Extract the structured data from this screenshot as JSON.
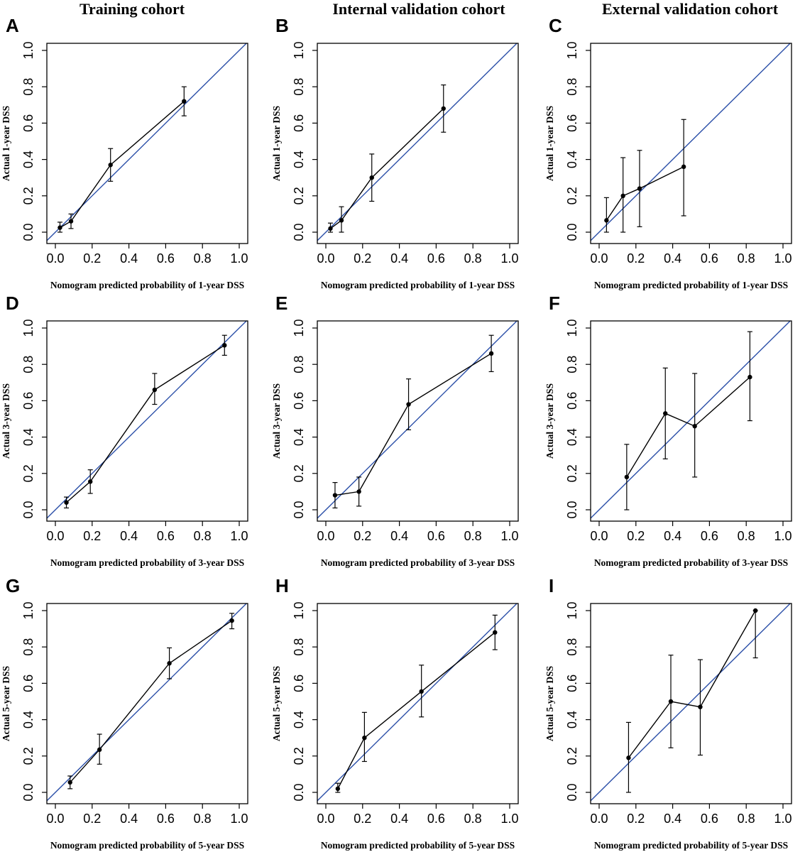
{
  "column_titles": [
    "Training cohort",
    "Internal validation cohort",
    "External validation cohort"
  ],
  "chart_data": [
    {
      "panel": "A",
      "type": "line",
      "cohort": "Training cohort",
      "xlabel": "Nomogram predicted probability of 1-year DSS",
      "ylabel": "Actual 1-year DSS",
      "xlim": [
        0,
        1
      ],
      "ylim": [
        0,
        1
      ],
      "ticks": [
        "0.0",
        "0.2",
        "0.4",
        "0.6",
        "0.8",
        "1.0"
      ],
      "reference_line": "ideal (y = x)",
      "points": [
        {
          "x": 0.025,
          "y": 0.025,
          "lo": 0.0,
          "hi": 0.055
        },
        {
          "x": 0.085,
          "y": 0.06,
          "lo": 0.02,
          "hi": 0.1
        },
        {
          "x": 0.3,
          "y": 0.37,
          "lo": 0.28,
          "hi": 0.46
        },
        {
          "x": 0.7,
          "y": 0.72,
          "lo": 0.64,
          "hi": 0.8
        }
      ]
    },
    {
      "panel": "B",
      "type": "line",
      "cohort": "Internal validation cohort",
      "xlabel": "Nomogram predicted probability of 1-year DSS",
      "ylabel": "Actual 1-year DSS",
      "xlim": [
        0,
        1
      ],
      "ylim": [
        0,
        1
      ],
      "ticks": [
        "0.0",
        "0.2",
        "0.4",
        "0.6",
        "0.8",
        "1.0"
      ],
      "reference_line": "ideal (y = x)",
      "points": [
        {
          "x": 0.025,
          "y": 0.02,
          "lo": 0.0,
          "hi": 0.05
        },
        {
          "x": 0.085,
          "y": 0.065,
          "lo": 0.0,
          "hi": 0.14
        },
        {
          "x": 0.25,
          "y": 0.3,
          "lo": 0.17,
          "hi": 0.43
        },
        {
          "x": 0.64,
          "y": 0.68,
          "lo": 0.55,
          "hi": 0.81
        }
      ]
    },
    {
      "panel": "C",
      "type": "line",
      "cohort": "External validation cohort",
      "xlabel": "Nomogram predicted probability of 1-year DSS",
      "ylabel": "Actual 1-year DSS",
      "xlim": [
        0,
        1
      ],
      "ylim": [
        0,
        1
      ],
      "ticks": [
        "0.0",
        "0.2",
        "0.4",
        "0.6",
        "0.8",
        "1.0"
      ],
      "reference_line": "ideal (y = x)",
      "points": [
        {
          "x": 0.04,
          "y": 0.065,
          "lo": 0.0,
          "hi": 0.19
        },
        {
          "x": 0.13,
          "y": 0.2,
          "lo": 0.0,
          "hi": 0.41
        },
        {
          "x": 0.22,
          "y": 0.24,
          "lo": 0.03,
          "hi": 0.45
        },
        {
          "x": 0.46,
          "y": 0.36,
          "lo": 0.09,
          "hi": 0.62
        }
      ]
    },
    {
      "panel": "D",
      "type": "line",
      "cohort": "Training cohort",
      "xlabel": "Nomogram predicted probability of 3-year DSS",
      "ylabel": "Actual 3-year DSS",
      "xlim": [
        0,
        1
      ],
      "ylim": [
        0,
        1
      ],
      "ticks": [
        "0.0",
        "0.2",
        "0.4",
        "0.6",
        "0.8",
        "1.0"
      ],
      "reference_line": "ideal (y = x)",
      "points": [
        {
          "x": 0.06,
          "y": 0.04,
          "lo": 0.01,
          "hi": 0.07
        },
        {
          "x": 0.19,
          "y": 0.155,
          "lo": 0.09,
          "hi": 0.22
        },
        {
          "x": 0.54,
          "y": 0.66,
          "lo": 0.58,
          "hi": 0.75
        },
        {
          "x": 0.92,
          "y": 0.905,
          "lo": 0.85,
          "hi": 0.96
        }
      ]
    },
    {
      "panel": "E",
      "type": "line",
      "cohort": "Internal validation cohort",
      "xlabel": "Nomogram predicted probability of 3-year DSS",
      "ylabel": "Actual 3-year DSS",
      "xlim": [
        0,
        1
      ],
      "ylim": [
        0,
        1
      ],
      "ticks": [
        "0.0",
        "0.2",
        "0.4",
        "0.6",
        "0.8",
        "1.0"
      ],
      "reference_line": "ideal (y = x)",
      "points": [
        {
          "x": 0.05,
          "y": 0.08,
          "lo": 0.01,
          "hi": 0.15
        },
        {
          "x": 0.18,
          "y": 0.1,
          "lo": 0.02,
          "hi": 0.18
        },
        {
          "x": 0.45,
          "y": 0.58,
          "lo": 0.44,
          "hi": 0.72
        },
        {
          "x": 0.9,
          "y": 0.86,
          "lo": 0.76,
          "hi": 0.96
        }
      ]
    },
    {
      "panel": "F",
      "type": "line",
      "cohort": "External validation cohort",
      "xlabel": "Nomogram predicted probability of 3-year DSS",
      "ylabel": "Actual 3-year DSS",
      "xlim": [
        0,
        1
      ],
      "ylim": [
        0,
        1
      ],
      "ticks": [
        "0.0",
        "0.2",
        "0.4",
        "0.6",
        "0.8",
        "1.0"
      ],
      "reference_line": "ideal (y = x)",
      "points": [
        {
          "x": 0.15,
          "y": 0.18,
          "lo": 0.0,
          "hi": 0.36
        },
        {
          "x": 0.36,
          "y": 0.53,
          "lo": 0.28,
          "hi": 0.78
        },
        {
          "x": 0.52,
          "y": 0.46,
          "lo": 0.18,
          "hi": 0.75
        },
        {
          "x": 0.82,
          "y": 0.73,
          "lo": 0.49,
          "hi": 0.98
        }
      ]
    },
    {
      "panel": "G",
      "type": "line",
      "cohort": "Training cohort",
      "xlabel": "Nomogram predicted probability of 5-year DSS",
      "ylabel": "Actual 5-year DSS",
      "xlim": [
        0,
        1
      ],
      "ylim": [
        0,
        1
      ],
      "ticks": [
        "0.0",
        "0.2",
        "0.4",
        "0.6",
        "0.8",
        "1.0"
      ],
      "reference_line": "ideal (y = x)",
      "points": [
        {
          "x": 0.08,
          "y": 0.055,
          "lo": 0.02,
          "hi": 0.09
        },
        {
          "x": 0.24,
          "y": 0.235,
          "lo": 0.155,
          "hi": 0.32
        },
        {
          "x": 0.62,
          "y": 0.71,
          "lo": 0.625,
          "hi": 0.795
        },
        {
          "x": 0.96,
          "y": 0.945,
          "lo": 0.9,
          "hi": 0.985
        }
      ]
    },
    {
      "panel": "H",
      "type": "line",
      "cohort": "Internal validation cohort",
      "xlabel": "Nomogram predicted probability of 5-year DSS",
      "ylabel": "Actual 5-year DSS",
      "xlim": [
        0,
        1
      ],
      "ylim": [
        0,
        1
      ],
      "ticks": [
        "0.0",
        "0.2",
        "0.4",
        "0.6",
        "0.8",
        "1.0"
      ],
      "reference_line": "ideal (y = x)",
      "points": [
        {
          "x": 0.065,
          "y": 0.02,
          "lo": 0.0,
          "hi": 0.05
        },
        {
          "x": 0.21,
          "y": 0.3,
          "lo": 0.17,
          "hi": 0.44
        },
        {
          "x": 0.52,
          "y": 0.555,
          "lo": 0.415,
          "hi": 0.7
        },
        {
          "x": 0.92,
          "y": 0.88,
          "lo": 0.785,
          "hi": 0.975
        }
      ]
    },
    {
      "panel": "I",
      "type": "line",
      "cohort": "External validation cohort",
      "xlabel": "Nomogram predicted probability of 5-year DSS",
      "ylabel": "Actual 5-year DSS",
      "xlim": [
        0,
        1
      ],
      "ylim": [
        0,
        1
      ],
      "ticks": [
        "0.0",
        "0.2",
        "0.4",
        "0.6",
        "0.8",
        "1.0"
      ],
      "reference_line": "ideal (y = x)",
      "points": [
        {
          "x": 0.16,
          "y": 0.19,
          "lo": 0.0,
          "hi": 0.385
        },
        {
          "x": 0.39,
          "y": 0.5,
          "lo": 0.245,
          "hi": 0.755
        },
        {
          "x": 0.55,
          "y": 0.47,
          "lo": 0.205,
          "hi": 0.73
        },
        {
          "x": 0.85,
          "y": 1.0,
          "lo": 0.74,
          "hi": 1.0
        }
      ]
    }
  ]
}
